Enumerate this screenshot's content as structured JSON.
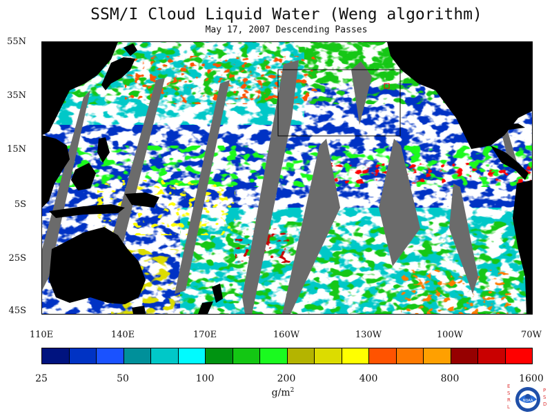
{
  "title": "SSM/I Cloud Liquid Water (Weng algorithm)",
  "subtitle": "May 17, 2007  Descending Passes",
  "map": {
    "lat_labels": [
      "55N",
      "35N",
      "15N",
      "5S",
      "25S",
      "45S"
    ],
    "lon_labels": [
      "110E",
      "140E",
      "170E",
      "160W",
      "130W",
      "100W",
      "70W"
    ],
    "projection": "cylindrical equidistant",
    "lon_range": [
      "110E",
      "70W"
    ],
    "lat_range": [
      "45S",
      "55N"
    ]
  },
  "colorbar": {
    "colors": [
      "#00137f",
      "#0033c4",
      "#1a52ff",
      "#00909a",
      "#00c8c8",
      "#00fbff",
      "#009411",
      "#13c713",
      "#1afa1f",
      "#b4b400",
      "#dcdc00",
      "#ffff00",
      "#ff5300",
      "#ff7a00",
      "#ffa000",
      "#960000",
      "#c90000",
      "#ff0000"
    ],
    "labels": [
      "25",
      "50",
      "100",
      "200",
      "400",
      "800",
      "1600"
    ],
    "unit_base": "g/m",
    "unit_exp": "2"
  },
  "colors": {
    "land": "#000000",
    "no_data": "#6b6b6b",
    "ocean_clear": "#ffffff"
  },
  "logo": {
    "left_letters": "ESRL",
    "right_letters": "PSD",
    "name": "NOAA"
  }
}
